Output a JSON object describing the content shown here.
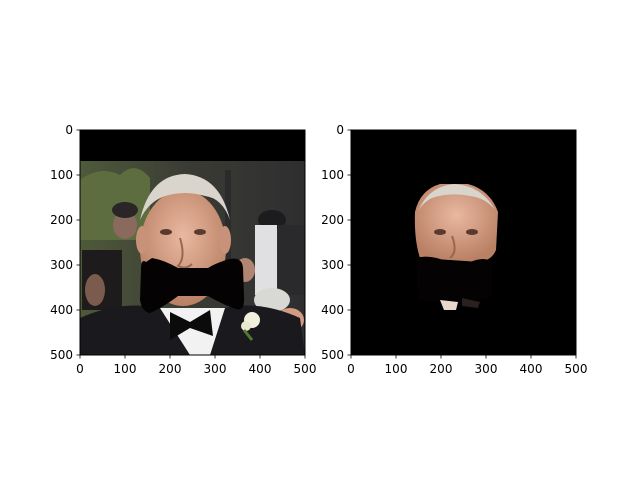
{
  "chart_data": [
    {
      "type": "image",
      "xlim": [
        0,
        500
      ],
      "ylim": [
        500,
        0
      ],
      "x_ticks": [
        "0",
        "100",
        "200",
        "300",
        "400",
        "500"
      ],
      "y_ticks": [
        "0",
        "100",
        "200",
        "300",
        "400",
        "500"
      ],
      "content": "photograph"
    },
    {
      "type": "image",
      "xlim": [
        0,
        500
      ],
      "ylim": [
        500,
        0
      ],
      "x_ticks": [
        "0",
        "100",
        "200",
        "300",
        "400",
        "500"
      ],
      "y_ticks": [
        "0",
        "100",
        "200",
        "300",
        "400",
        "500"
      ],
      "content": "masked photograph (face region)"
    }
  ],
  "colors": {
    "background": "#000000",
    "frame": "#000000",
    "mask": "#050203"
  }
}
